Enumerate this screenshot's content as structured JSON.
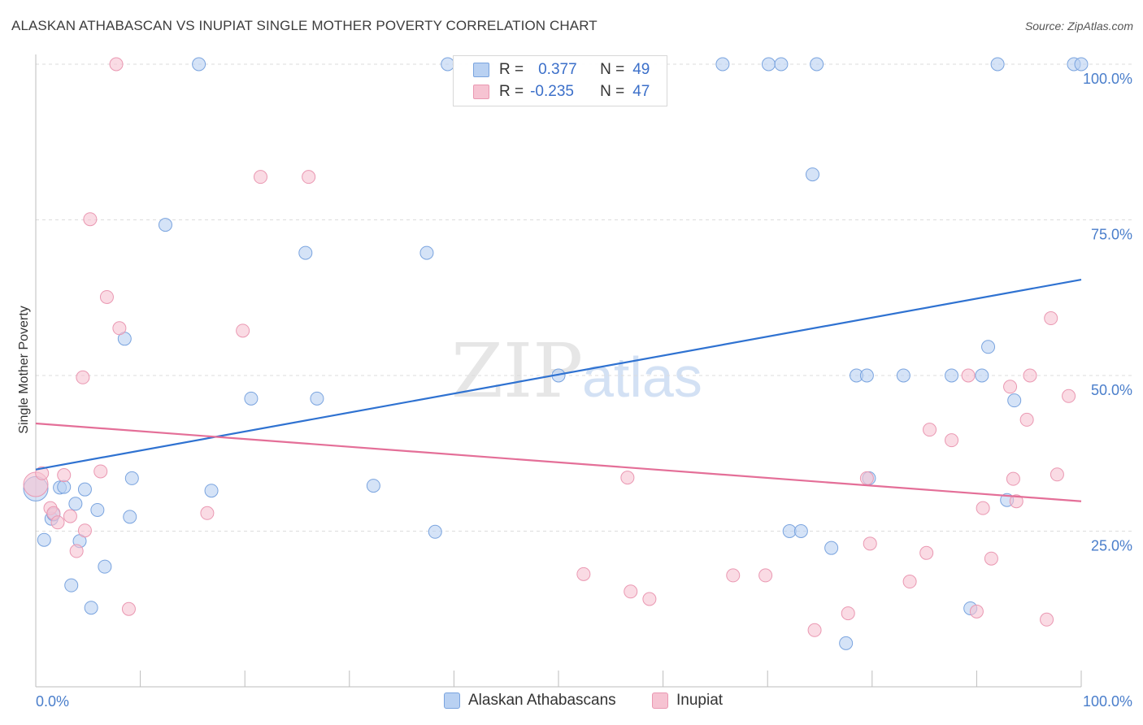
{
  "title": "ALASKAN ATHABASCAN VS INUPIAT SINGLE MOTHER POVERTY CORRELATION CHART",
  "source": "Source: ZipAtlas.com",
  "watermark": {
    "zip": "ZIP",
    "atlas": "atlas"
  },
  "legend_top": {
    "row1": {
      "r_label": "R =",
      "r_value": "0.377",
      "n_label": "N =",
      "n_value": "49"
    },
    "row2": {
      "r_label": "R =",
      "r_value": "-0.235",
      "n_label": "N =",
      "n_value": "47"
    }
  },
  "bottom_legend": {
    "series1": "Alaskan Athabascans",
    "series2": "Inupiat"
  },
  "colors": {
    "blue_fill": "#b9d1f2",
    "blue_stroke": "#7aa4df",
    "blue_line": "#2f72d1",
    "pink_fill": "#f6c3d2",
    "pink_stroke": "#ea98b2",
    "pink_line": "#e46f98",
    "tick_text": "#4a7ecb"
  },
  "chart_data": {
    "type": "scatter",
    "title": "ALASKAN ATHABASCAN VS INUPIAT SINGLE MOTHER POVERTY CORRELATION CHART",
    "xlabel": "",
    "ylabel": "Single Mother Poverty",
    "xlim": [
      0,
      100
    ],
    "ylim": [
      0,
      100
    ],
    "x_tick_labels": [
      "0.0%",
      "100.0%"
    ],
    "y_tick_labels": [
      {
        "value": 25,
        "label": "25.0%"
      },
      {
        "value": 50,
        "label": "50.0%"
      },
      {
        "value": 75,
        "label": "75.0%"
      },
      {
        "value": 100,
        "label": "100.0%"
      }
    ],
    "series": [
      {
        "name": "Alaskan Athabascans",
        "r": 0.377,
        "n": 49,
        "trend": {
          "x": [
            0,
            100
          ],
          "y": [
            34.9,
            65.4
          ]
        },
        "points": [
          {
            "x": 0,
            "y": 31.8,
            "big": true
          },
          {
            "x": 0.8,
            "y": 23.6
          },
          {
            "x": 1.5,
            "y": 27
          },
          {
            "x": 1.7,
            "y": 27.7
          },
          {
            "x": 2.3,
            "y": 32
          },
          {
            "x": 2.7,
            "y": 32.1
          },
          {
            "x": 3.4,
            "y": 16.3
          },
          {
            "x": 3.8,
            "y": 29.4
          },
          {
            "x": 4.2,
            "y": 23.4
          },
          {
            "x": 4.7,
            "y": 31.7
          },
          {
            "x": 5.3,
            "y": 12.7
          },
          {
            "x": 5.9,
            "y": 28.4
          },
          {
            "x": 6.6,
            "y": 19.3
          },
          {
            "x": 8.5,
            "y": 55.9
          },
          {
            "x": 9,
            "y": 27.3
          },
          {
            "x": 9.2,
            "y": 33.5
          },
          {
            "x": 12.4,
            "y": 74.2
          },
          {
            "x": 16.8,
            "y": 31.5
          },
          {
            "x": 20.6,
            "y": 46.3
          },
          {
            "x": 25.8,
            "y": 69.7
          },
          {
            "x": 26.9,
            "y": 46.3
          },
          {
            "x": 32.3,
            "y": 32.3
          },
          {
            "x": 37.4,
            "y": 69.7
          },
          {
            "x": 38.2,
            "y": 24.9
          },
          {
            "x": 50,
            "y": 50
          },
          {
            "x": 72.1,
            "y": 25
          },
          {
            "x": 73.2,
            "y": 25
          },
          {
            "x": 74.3,
            "y": 82.3
          },
          {
            "x": 76.1,
            "y": 22.3
          },
          {
            "x": 77.5,
            "y": 7
          },
          {
            "x": 78.5,
            "y": 50
          },
          {
            "x": 79.5,
            "y": 50
          },
          {
            "x": 79.7,
            "y": 33.5
          },
          {
            "x": 83,
            "y": 50
          },
          {
            "x": 87.6,
            "y": 50
          },
          {
            "x": 89.4,
            "y": 12.6
          },
          {
            "x": 90.5,
            "y": 50
          },
          {
            "x": 91.1,
            "y": 54.6
          },
          {
            "x": 92.9,
            "y": 30
          },
          {
            "x": 93.6,
            "y": 46
          },
          {
            "x": 15.6,
            "y": 100
          },
          {
            "x": 39.4,
            "y": 100
          },
          {
            "x": 65.7,
            "y": 100
          },
          {
            "x": 70.1,
            "y": 100
          },
          {
            "x": 71.3,
            "y": 100
          },
          {
            "x": 74.7,
            "y": 100
          },
          {
            "x": 92,
            "y": 100
          },
          {
            "x": 99.3,
            "y": 100
          },
          {
            "x": 100,
            "y": 100
          }
        ]
      },
      {
        "name": "Inupiat",
        "r": -0.235,
        "n": 47,
        "trend": {
          "x": [
            0,
            100
          ],
          "y": [
            42.3,
            29.8
          ]
        },
        "points": [
          {
            "x": 0,
            "y": 32.5,
            "big": true
          },
          {
            "x": 0.6,
            "y": 34.3
          },
          {
            "x": 1.4,
            "y": 28.7
          },
          {
            "x": 1.7,
            "y": 27.9
          },
          {
            "x": 2.1,
            "y": 26.4
          },
          {
            "x": 2.7,
            "y": 34
          },
          {
            "x": 3.3,
            "y": 27.4
          },
          {
            "x": 3.9,
            "y": 21.8
          },
          {
            "x": 4.5,
            "y": 49.7
          },
          {
            "x": 4.7,
            "y": 25.1
          },
          {
            "x": 5.2,
            "y": 75.1
          },
          {
            "x": 6.2,
            "y": 34.6
          },
          {
            "x": 6.8,
            "y": 62.6
          },
          {
            "x": 7.7,
            "y": 100
          },
          {
            "x": 8,
            "y": 57.6
          },
          {
            "x": 8.9,
            "y": 12.5
          },
          {
            "x": 16.4,
            "y": 27.9
          },
          {
            "x": 19.8,
            "y": 57.2
          },
          {
            "x": 21.5,
            "y": 81.9
          },
          {
            "x": 26.1,
            "y": 81.9
          },
          {
            "x": 52.4,
            "y": 18.1
          },
          {
            "x": 56.6,
            "y": 33.6
          },
          {
            "x": 56.9,
            "y": 15.3
          },
          {
            "x": 58.7,
            "y": 14.1
          },
          {
            "x": 66.7,
            "y": 17.9
          },
          {
            "x": 69.8,
            "y": 17.9
          },
          {
            "x": 74.5,
            "y": 9.1
          },
          {
            "x": 77.7,
            "y": 11.8
          },
          {
            "x": 79.5,
            "y": 33.5
          },
          {
            "x": 79.8,
            "y": 23
          },
          {
            "x": 83.6,
            "y": 16.9
          },
          {
            "x": 85.2,
            "y": 21.5
          },
          {
            "x": 85.5,
            "y": 41.3
          },
          {
            "x": 87.6,
            "y": 39.6
          },
          {
            "x": 89.2,
            "y": 50
          },
          {
            "x": 90,
            "y": 12.1
          },
          {
            "x": 90.6,
            "y": 28.7
          },
          {
            "x": 91.4,
            "y": 20.6
          },
          {
            "x": 93.2,
            "y": 48.2
          },
          {
            "x": 93.5,
            "y": 33.4
          },
          {
            "x": 93.8,
            "y": 29.8
          },
          {
            "x": 94.8,
            "y": 42.9
          },
          {
            "x": 95.1,
            "y": 50
          },
          {
            "x": 96.7,
            "y": 10.8
          },
          {
            "x": 97.1,
            "y": 59.2
          },
          {
            "x": 97.7,
            "y": 34.1
          },
          {
            "x": 98.8,
            "y": 46.7
          }
        ]
      }
    ]
  }
}
